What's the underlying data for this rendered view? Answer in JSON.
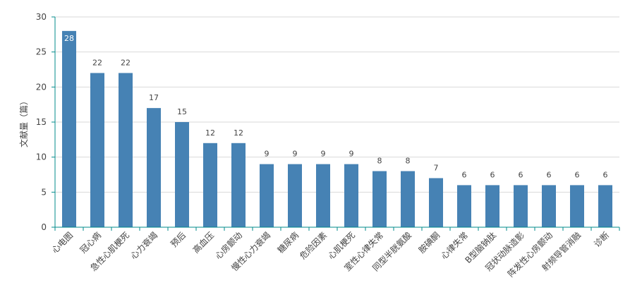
{
  "chart_data": {
    "type": "bar",
    "title": "",
    "xlabel": "",
    "ylabel": "文献量（篇）",
    "ylim": [
      0,
      30
    ],
    "yticks": [
      "0",
      "5",
      "10",
      "15",
      "20",
      "25",
      "30"
    ],
    "categories": [
      "心电图",
      "冠心病",
      "急性心肌梗死",
      "心力衰竭",
      "预后",
      "高血压",
      "心房颤动",
      "慢性心力衰竭",
      "糖尿病",
      "危险因素",
      "心肌梗死",
      "室性心律失常",
      "同型半胱氨酸",
      "胺碘酮",
      "心律失常",
      "B型脑钠肽",
      "冠状动脉造影",
      "阵发性心房颤动",
      "射频导管消融",
      "诊断"
    ],
    "values": [
      28,
      22,
      22,
      17,
      15,
      12,
      12,
      9,
      9,
      9,
      9,
      8,
      8,
      7,
      6,
      6,
      6,
      6,
      6,
      6
    ],
    "grid": true,
    "bar_color": "#4682b4",
    "axis_color": "#008b8b",
    "grid_color": "#d9d9d9"
  }
}
